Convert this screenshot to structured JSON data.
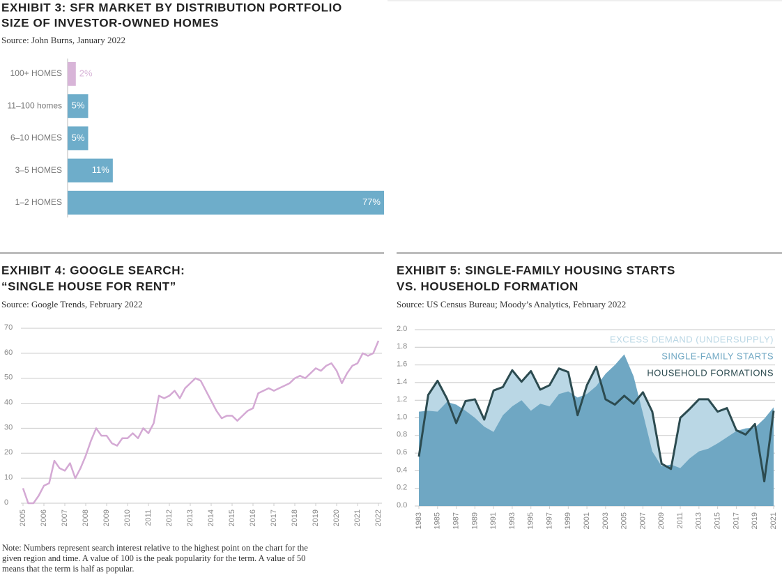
{
  "chart_data": [
    {
      "type": "hbar",
      "title": [
        "EXHIBIT 3: SFR MARKET BY DISTRIBUTION PORTFOLIO",
        "SIZE OF INVESTOR-OWNED HOMES"
      ],
      "source": "Source: John Burns, January 2022",
      "categories": [
        "100+ HOMES",
        "11–100 homes",
        "6–10 HOMES",
        "3–5 HOMES",
        "1–2 HOMES"
      ],
      "values": [
        2,
        5,
        5,
        11,
        77
      ],
      "value_labels": [
        "2%",
        "5%",
        "5%",
        "11%",
        "77%"
      ],
      "colors": [
        "#d8b5d8",
        "#6eadca",
        "#6eadca",
        "#6eadca",
        "#6eadca"
      ]
    },
    {
      "type": "line",
      "title": [
        "EXHIBIT 4: GOOGLE SEARCH:",
        "“SINGLE HOUSE FOR RENT”"
      ],
      "source": "Source: Google Trends, February 2022",
      "x": [
        2005,
        2005.25,
        2005.5,
        2005.75,
        2006,
        2006.25,
        2006.5,
        2006.75,
        2007,
        2007.25,
        2007.5,
        2007.75,
        2008,
        2008.25,
        2008.5,
        2008.75,
        2009,
        2009.25,
        2009.5,
        2009.75,
        2010,
        2010.25,
        2010.5,
        2010.75,
        2011,
        2011.25,
        2011.5,
        2011.75,
        2012,
        2012.25,
        2012.5,
        2012.75,
        2013,
        2013.25,
        2013.5,
        2013.75,
        2014,
        2014.25,
        2014.5,
        2014.75,
        2015,
        2015.25,
        2015.5,
        2015.75,
        2016,
        2016.25,
        2016.5,
        2016.75,
        2017,
        2017.25,
        2017.5,
        2017.75,
        2018,
        2018.25,
        2018.5,
        2018.75,
        2019,
        2019.25,
        2019.5,
        2019.75,
        2020,
        2020.25,
        2020.5,
        2020.75,
        2021,
        2021.25,
        2021.5,
        2021.75,
        2022
      ],
      "series": [
        {
          "color": "#d4a9d4",
          "values": [
            6,
            0,
            0,
            3,
            7,
            8,
            17,
            14,
            13,
            16,
            10,
            14,
            19,
            25,
            30,
            27,
            27,
            24,
            23,
            26,
            26,
            28,
            26,
            30,
            28,
            32,
            43,
            42,
            43,
            45,
            42,
            46,
            48,
            50,
            49,
            45,
            41,
            37,
            34,
            35,
            35,
            33,
            35,
            37,
            38,
            44,
            45,
            46,
            45,
            46,
            47,
            48,
            50,
            51,
            50,
            52,
            54,
            53,
            55,
            56,
            53,
            48,
            52,
            55,
            56,
            60,
            59,
            60,
            65
          ]
        }
      ],
      "xlim": [
        2005,
        2022
      ],
      "xticks": [
        2005,
        2006,
        2007,
        2008,
        2009,
        2010,
        2011,
        2012,
        2013,
        2014,
        2015,
        2016,
        2017,
        2018,
        2019,
        2020,
        2021,
        2022
      ],
      "ylim": [
        0,
        70
      ],
      "yticks": [
        0,
        10,
        20,
        30,
        40,
        50,
        60,
        70
      ],
      "grid": true
    },
    {
      "type": "combo",
      "title": [
        "EXHIBIT 5: SINGLE-FAMILY HOUSING STARTS",
        "VS. HOUSEHOLD FORMATION"
      ],
      "source": "Source: US Census Bureau; Moody’s Analytics, February 2022",
      "x": [
        1983,
        1984,
        1985,
        1986,
        1987,
        1988,
        1989,
        1990,
        1991,
        1992,
        1993,
        1994,
        1995,
        1996,
        1997,
        1998,
        1999,
        2000,
        2001,
        2002,
        2003,
        2004,
        2005,
        2006,
        2007,
        2008,
        2009,
        2010,
        2011,
        2012,
        2013,
        2014,
        2015,
        2016,
        2017,
        2018,
        2019,
        2020,
        2021
      ],
      "series": [
        {
          "name": "EXCESS DEMAND (UNDERSUPPLY)",
          "color": "#bad7e5"
        },
        {
          "name": "SINGLE-FAMILY STARTS",
          "color": "#6fa7c3",
          "style": "area",
          "values": [
            1.07,
            1.08,
            1.07,
            1.18,
            1.15,
            1.08,
            1.0,
            0.9,
            0.84,
            1.03,
            1.13,
            1.2,
            1.08,
            1.16,
            1.13,
            1.27,
            1.3,
            1.23,
            1.27,
            1.36,
            1.5,
            1.6,
            1.72,
            1.47,
            1.05,
            0.62,
            0.45,
            0.47,
            0.43,
            0.54,
            0.62,
            0.65,
            0.71,
            0.78,
            0.85,
            0.88,
            0.89,
            0.99,
            1.12
          ]
        },
        {
          "name": "HOUSEHOLD FORMATIONS",
          "color": "#2c4b50",
          "style": "line",
          "values": [
            0.56,
            1.26,
            1.42,
            1.22,
            0.94,
            1.19,
            1.21,
            0.98,
            1.31,
            1.35,
            1.54,
            1.41,
            1.53,
            1.32,
            1.37,
            1.56,
            1.52,
            1.03,
            1.37,
            1.58,
            1.21,
            1.15,
            1.25,
            1.16,
            1.29,
            1.07,
            0.48,
            0.42,
            1.0,
            1.1,
            1.21,
            1.21,
            1.07,
            1.11,
            0.86,
            0.81,
            0.93,
            0.28,
            1.08
          ]
        }
      ],
      "xlim": [
        1983,
        2021
      ],
      "xticks": [
        1983,
        1985,
        1987,
        1989,
        1991,
        1993,
        1995,
        1997,
        1999,
        2001,
        2003,
        2005,
        2007,
        2009,
        2011,
        2013,
        2015,
        2017,
        2019,
        2021
      ],
      "ylim": [
        0,
        2
      ],
      "yticks": [
        {
          "value": 0,
          "label": "0.0"
        },
        0.2,
        0.4,
        0.6,
        0.8,
        {
          "value": 1,
          "label": "1.0"
        },
        1.2,
        1.4,
        1.6,
        1.8,
        {
          "value": 2,
          "label": "2.0"
        }
      ],
      "grid": true,
      "legend": "upper right"
    }
  ],
  "note": [
    "Note: Numbers represent search interest relative to the highest point on the chart for the",
    "given region and time. A value of 100 is the peak popularity for the term. A value of 50",
    "means that the term is half as popular."
  ]
}
